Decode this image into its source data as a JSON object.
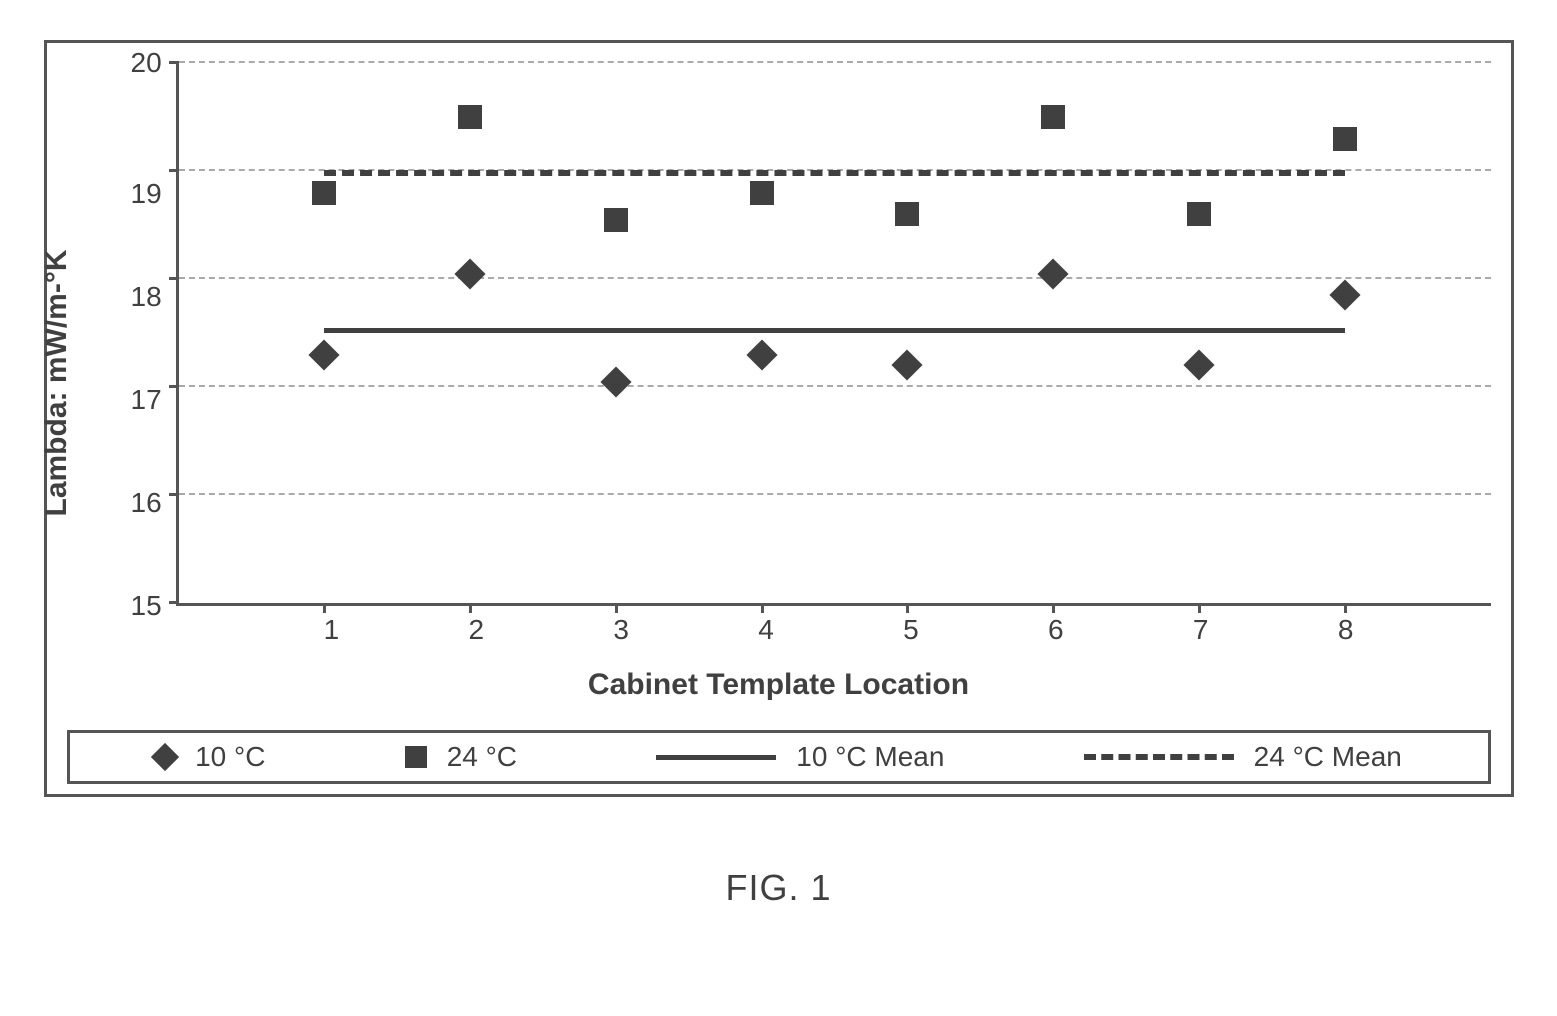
{
  "chart": {
    "type": "scatter",
    "ylabel": "Lambda:  mW/m-°K",
    "xlabel": "Cabinet Template Location",
    "ylim": [
      15,
      20
    ],
    "yticks": [
      15,
      16,
      17,
      18,
      19,
      20
    ],
    "xlim": [
      0,
      9
    ],
    "xticks": [
      1,
      2,
      3,
      4,
      5,
      6,
      7,
      8
    ],
    "grid_color": "#aaaaaa",
    "axis_color": "#555555",
    "background_color": "#ffffff",
    "label_fontsize": 30,
    "tick_fontsize": 28,
    "series": [
      {
        "name": "10 °C",
        "marker": "diamond",
        "color": "#404040",
        "marker_size": 22,
        "x": [
          1,
          2,
          3,
          4,
          5,
          6,
          7,
          8
        ],
        "y": [
          17.3,
          18.05,
          17.05,
          17.3,
          17.2,
          18.05,
          17.2,
          17.85
        ]
      },
      {
        "name": "24 °C",
        "marker": "square",
        "color": "#404040",
        "marker_size": 24,
        "x": [
          1,
          2,
          3,
          4,
          5,
          6,
          7,
          8
        ],
        "y": [
          18.8,
          19.5,
          18.55,
          18.8,
          18.6,
          19.5,
          18.6,
          19.3
        ]
      }
    ],
    "mean_lines": [
      {
        "name": "10 °C Mean",
        "style": "solid",
        "color": "#404040",
        "width": 5,
        "y": 17.5,
        "x_from": 1,
        "x_to": 8
      },
      {
        "name": "24 °C Mean",
        "style": "dashed",
        "color": "#404040",
        "width": 6,
        "y": 18.95,
        "x_from": 1,
        "x_to": 8
      }
    ],
    "legend": {
      "items": [
        {
          "label": "10 °C",
          "swatch": "diamond"
        },
        {
          "label": "24 °C",
          "swatch": "square"
        },
        {
          "label": "10 °C Mean",
          "swatch": "line-solid"
        },
        {
          "label": "24 °C Mean",
          "swatch": "line-dashed"
        }
      ],
      "fontsize": 28
    }
  },
  "caption": "FIG. 1"
}
